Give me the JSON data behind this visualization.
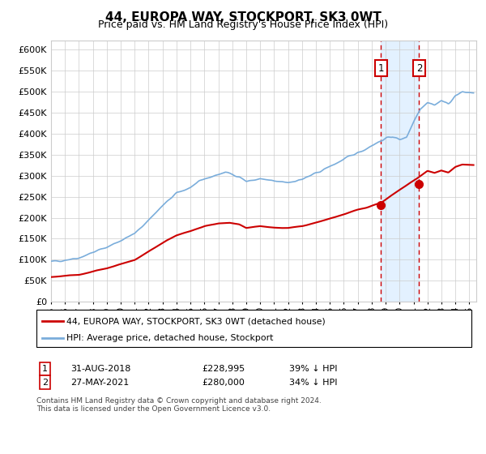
{
  "title": "44, EUROPA WAY, STOCKPORT, SK3 0WT",
  "subtitle": "Price paid vs. HM Land Registry's House Price Index (HPI)",
  "legend_line1": "44, EUROPA WAY, STOCKPORT, SK3 0WT (detached house)",
  "legend_line2": "HPI: Average price, detached house, Stockport",
  "footnote": "Contains HM Land Registry data © Crown copyright and database right 2024.\nThis data is licensed under the Open Government Licence v3.0.",
  "sale1_date": "31-AUG-2018",
  "sale1_price": "£228,995",
  "sale1_hpi": "39% ↓ HPI",
  "sale1_year": 2018.67,
  "sale1_value": 228995,
  "sale2_date": "27-MAY-2021",
  "sale2_price": "£280,000",
  "sale2_hpi": "34% ↓ HPI",
  "sale2_year": 2021.4,
  "sale2_value": 280000,
  "ylim_max": 620000,
  "xlim_start": 1995.0,
  "xlim_end": 2025.5,
  "red_color": "#cc0000",
  "blue_color": "#7aaddb",
  "shaded_color": "#ddeeff",
  "grid_color": "#cccccc",
  "bg_color": "#ffffff",
  "title_fontsize": 11,
  "subtitle_fontsize": 9
}
